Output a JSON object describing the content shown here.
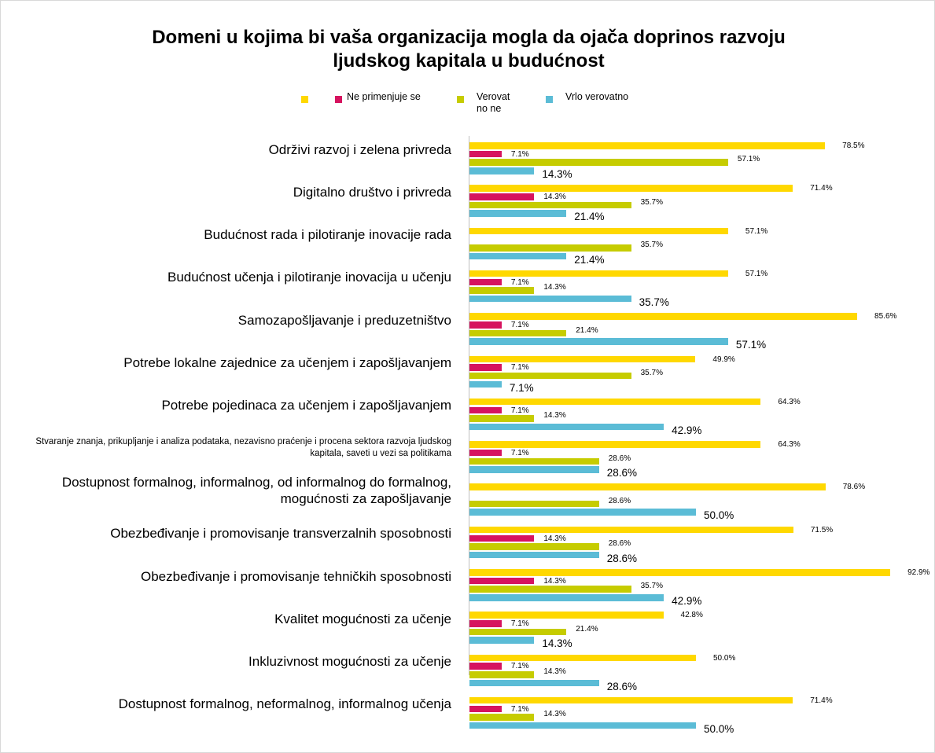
{
  "chart_data": {
    "type": "bar",
    "orientation": "horizontal",
    "title": "Domeni u kojima bi vaša organizacija mogla da ojača doprinos razvoju ljudskog kapitala u budućnost",
    "categories": [
      "Održivi razvoj i zelena privreda",
      "Digitalno društvo i privreda",
      "Budućnost rada i pilotiranje inovacije rada",
      "Budućnost učenja i pilotiranje inovacija u učenju",
      "Samozapošljavanje i preduzetništvo",
      "Potrebe lokalne zajednice za učenjem i zapošljavanjem",
      "Potrebe pojedinaca za učenjem i zapošljavanjem",
      "Stvaranje znanja, prikupljanje i analiza podataka, nezavisno praćenje i procena sektora razvoja ljudskog kapitala, saveti u vezi sa politikama",
      "Dostupnost formalnog, informalnog, od informalnog do formalnog, mogućnosti za zapošljavanje",
      "Obezbeđivanje i promovisanje transverzalnih sposobnosti",
      "Obezbeđivanje i promovisanje tehničkih sposobnosti",
      "Kvalitet mogućnosti za učenje",
      "Inkluzivnost mogućnosti za učenje",
      "Dostupnost formalnog, neformalnog, informalnog učenja"
    ],
    "series": [
      {
        "color": "#ffd800",
        "values": [
          78.5,
          71.4,
          57.1,
          57.1,
          85.6,
          49.9,
          64.3,
          64.3,
          78.6,
          71.5,
          92.9,
          42.8,
          50.0,
          71.4
        ],
        "value_labels": [
          "78.5%",
          "71.4%",
          "57.1%",
          "57.1%",
          "85.6%",
          "49.9%",
          "64.3%",
          "64.3%",
          "78.6%",
          "71.5%",
          "92.9%",
          "42.8%",
          "50.0%",
          "71.4%"
        ]
      },
      {
        "name": "Ne primenjuje se",
        "color": "#d6135f",
        "values": [
          7.1,
          14.3,
          null,
          7.1,
          7.1,
          7.1,
          7.1,
          7.1,
          null,
          14.3,
          14.3,
          7.1,
          7.1,
          7.1
        ],
        "value_labels": [
          "7.1%",
          "14.3%",
          null,
          "7.1%",
          "7.1%",
          "7.1%",
          "7.1%",
          "7.1%",
          null,
          "14.3%",
          "14.3%",
          "7.1%",
          "7.1%",
          "7.1%"
        ]
      },
      {
        "name": "Verovatno ne",
        "color": "#c6cc00",
        "values": [
          57.1,
          35.7,
          35.7,
          14.3,
          21.4,
          35.7,
          14.3,
          28.6,
          28.6,
          28.6,
          35.7,
          21.4,
          14.3,
          14.3
        ],
        "value_labels": [
          "57.1%",
          "35.7%",
          "35.7%",
          "14.3%",
          "21.4%",
          "35.7%",
          "14.3%",
          "28.6%",
          "28.6%",
          "28.6%",
          "35.7%",
          "21.4%",
          "14.3%",
          "14.3%"
        ]
      },
      {
        "name": "Vrlo verovatno",
        "color": "#5bbcd6",
        "values": [
          14.3,
          21.4,
          21.4,
          35.7,
          57.1,
          7.1,
          42.9,
          28.6,
          50.0,
          28.6,
          42.9,
          14.3,
          28.6,
          50.0
        ],
        "value_labels": [
          "14.3%",
          "21.4%",
          "21.4%",
          "35.7%",
          "57.1%",
          "7.1%",
          "42.9%",
          "28.6%",
          "50.0%",
          "28.6%",
          "42.9%",
          "14.3%",
          "28.6%",
          "50.0%"
        ]
      }
    ]
  }
}
